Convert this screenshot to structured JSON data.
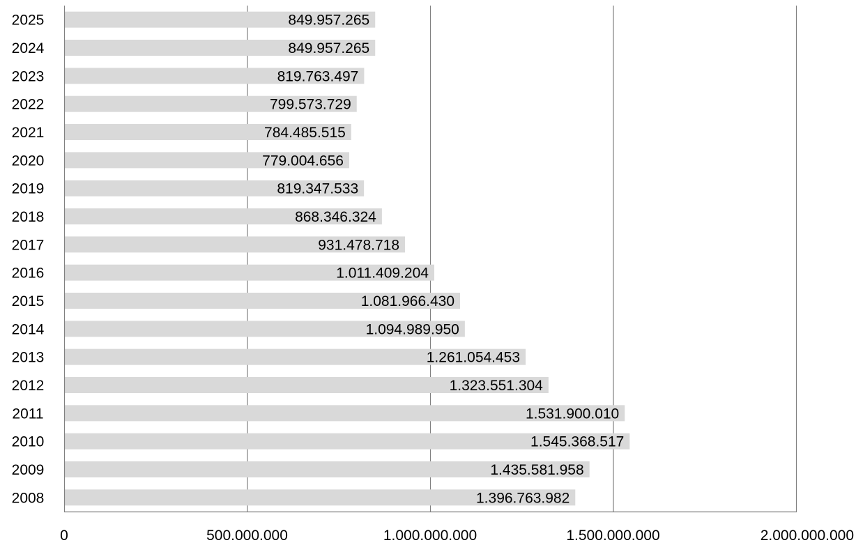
{
  "chart_data": {
    "type": "bar",
    "orientation": "horizontal",
    "categories": [
      "2025",
      "2024",
      "2023",
      "2022",
      "2021",
      "2020",
      "2019",
      "2018",
      "2017",
      "2016",
      "2015",
      "2014",
      "2013",
      "2012",
      "2011",
      "2010",
      "2009",
      "2008"
    ],
    "values": [
      849957265,
      849957265,
      819763497,
      799573729,
      784485515,
      779004656,
      819347533,
      868346324,
      931478718,
      1011409204,
      1081966430,
      1094989950,
      1261054453,
      1323551304,
      1531900010,
      1545368517,
      1435581958,
      1396763982
    ],
    "value_labels": [
      "849.957.265",
      "849.957.265",
      "819.763.497",
      "799.573.729",
      "784.485.515",
      "779.004.656",
      "819.347.533",
      "868.346.324",
      "931.478.718",
      "1.011.409.204",
      "1.081.966.430",
      "1.094.989.950",
      "1.261.054.453",
      "1.323.551.304",
      "1.531.900.010",
      "1.545.368.517",
      "1.435.581.958",
      "1.396.763.982"
    ],
    "xlim": [
      0,
      2000000000
    ],
    "x_ticks": [
      0,
      500000000,
      1000000000,
      1500000000,
      2000000000
    ],
    "x_tick_labels": [
      "0",
      "500.000.000",
      "1.000.000.000",
      "1.500.000.000",
      "2.000.000.000"
    ],
    "grid": "vertical",
    "legend": "none",
    "bar_color": "#d9d9d9",
    "grid_color": "#808080",
    "title": "",
    "xlabel": "",
    "ylabel": ""
  }
}
